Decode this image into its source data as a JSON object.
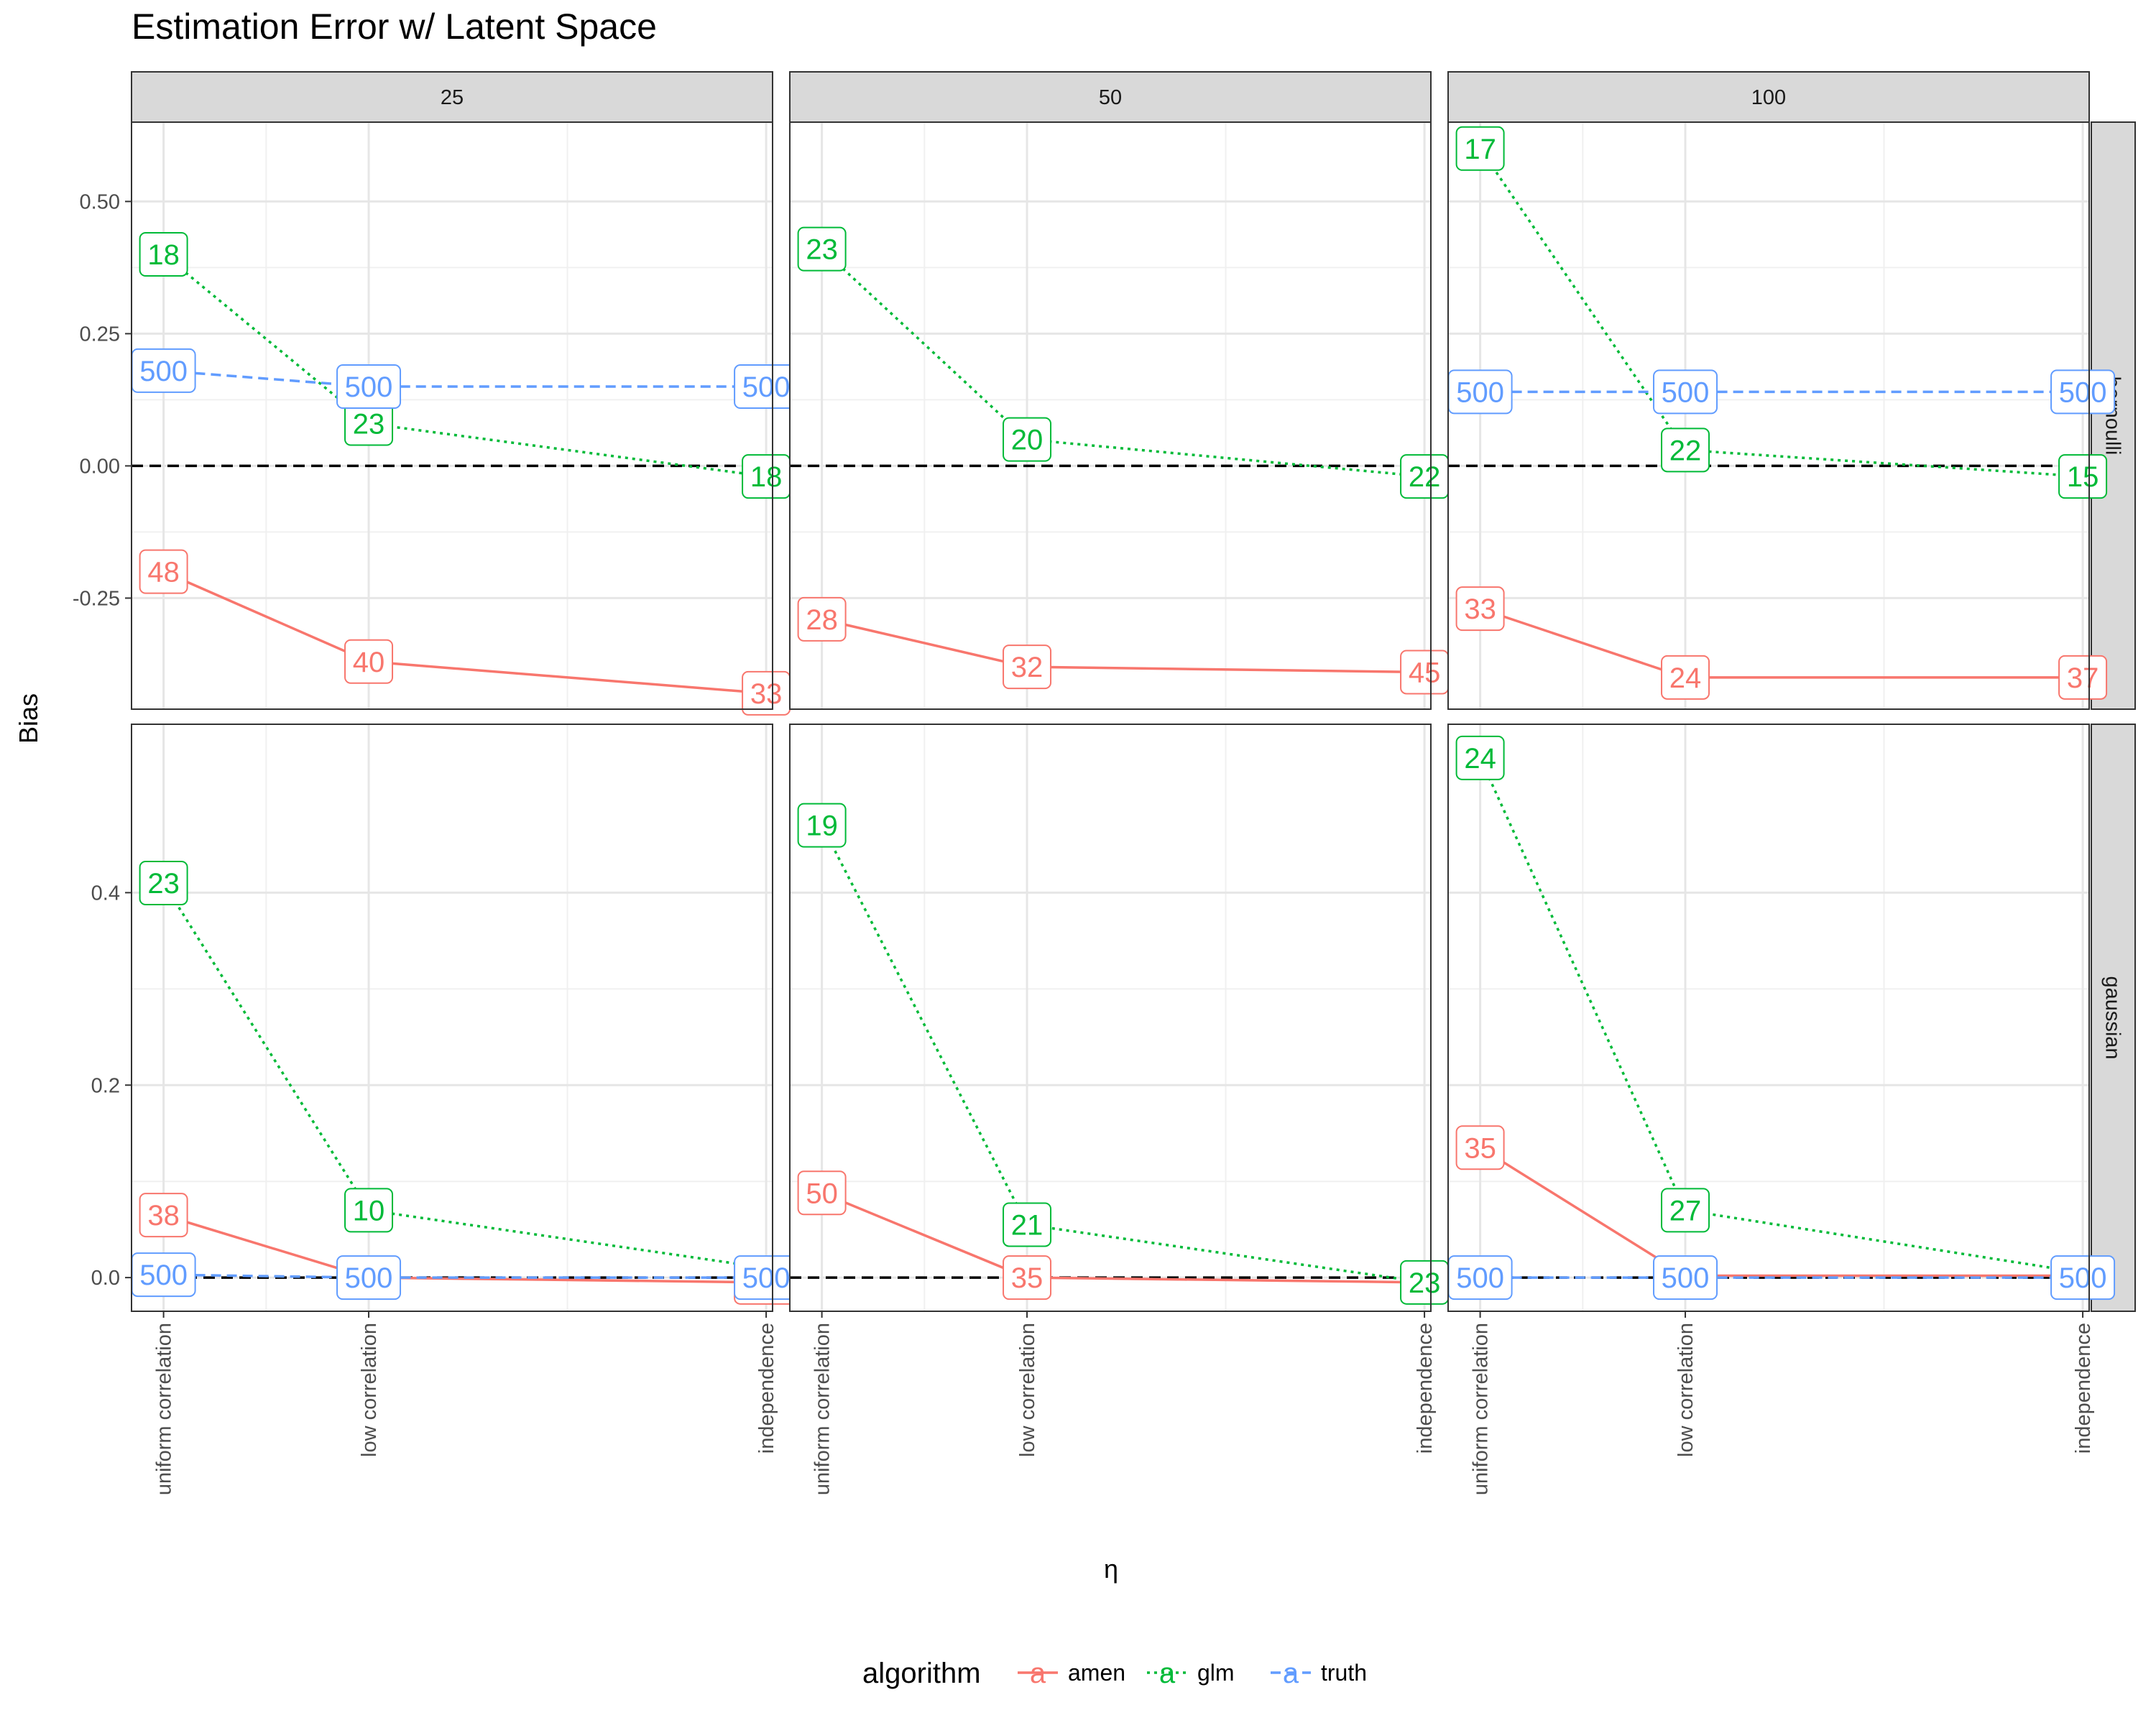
{
  "chart_data": {
    "type": "line",
    "title": "Estimation Error w/ Latent Space",
    "xlabel": "η",
    "ylabel": "Bias",
    "categories": [
      "uniform correlation",
      "low correlation",
      "independence"
    ],
    "columns": [
      "25",
      "50",
      "100"
    ],
    "rows": [
      "bernoulli",
      "gaussian"
    ],
    "legend": {
      "title": "algorithm",
      "position": "bottom",
      "entries": [
        "amen",
        "glm",
        "truth"
      ]
    },
    "colors": {
      "amen": "#F8766D",
      "glm": "#00BA38",
      "truth": "#619CFF",
      "reference": "#000000"
    },
    "line_styles": {
      "amen": "solid",
      "glm": "dotted",
      "truth": "dashed"
    },
    "reference_line": {
      "y": 0,
      "style": "dashed"
    },
    "grid": true,
    "row_axes": [
      {
        "row": "bernoulli",
        "ylim": [
          -0.46,
          0.65
        ],
        "ticks": [
          -0.25,
          0,
          0.25,
          0.5
        ],
        "tick_labels": [
          "-0.25",
          "0.00",
          "0.25",
          "0.50"
        ]
      },
      {
        "row": "gaussian",
        "ylim": [
          -0.035,
          0.575
        ],
        "ticks": [
          0,
          0.2,
          0.4
        ],
        "tick_labels": [
          "0.0",
          "0.2",
          "0.4"
        ]
      }
    ],
    "panels": [
      {
        "row": "bernoulli",
        "column": "25",
        "series": [
          {
            "name": "amen",
            "values": [
              -0.2,
              -0.37,
              -0.43
            ],
            "labels": [
              "48",
              "40",
              "33"
            ]
          },
          {
            "name": "glm",
            "values": [
              0.4,
              0.08,
              -0.02
            ],
            "labels": [
              "18",
              "23",
              "18"
            ]
          },
          {
            "name": "truth",
            "values": [
              0.18,
              0.15,
              0.15
            ],
            "labels": [
              "500",
              "500",
              "500"
            ]
          }
        ]
      },
      {
        "row": "bernoulli",
        "column": "50",
        "series": [
          {
            "name": "amen",
            "values": [
              -0.29,
              -0.38,
              -0.39
            ],
            "labels": [
              "28",
              "32",
              "45"
            ]
          },
          {
            "name": "glm",
            "values": [
              0.41,
              0.05,
              -0.02
            ],
            "labels": [
              "23",
              "20",
              "22"
            ]
          },
          {
            "name": "truth",
            "values": [
              null,
              null,
              null
            ],
            "labels": [
              "",
              "",
              ""
            ]
          }
        ]
      },
      {
        "row": "bernoulli",
        "column": "100",
        "series": [
          {
            "name": "amen",
            "values": [
              -0.27,
              -0.4,
              -0.4
            ],
            "labels": [
              "33",
              "24",
              "37"
            ]
          },
          {
            "name": "glm",
            "values": [
              0.6,
              0.03,
              -0.02
            ],
            "labels": [
              "17",
              "22",
              "15"
            ]
          },
          {
            "name": "truth",
            "values": [
              0.14,
              0.14,
              0.14
            ],
            "labels": [
              "500",
              "500",
              "500"
            ]
          }
        ]
      },
      {
        "row": "gaussian",
        "column": "25",
        "series": [
          {
            "name": "amen",
            "values": [
              0.065,
              0.0,
              -0.005
            ],
            "labels": [
              "38",
              "",
              "500"
            ]
          },
          {
            "name": "glm",
            "values": [
              0.41,
              0.07,
              0.01
            ],
            "labels": [
              "23",
              "10",
              ""
            ]
          },
          {
            "name": "truth",
            "values": [
              0.003,
              0.0,
              0.0
            ],
            "labels": [
              "500",
              "500",
              "500"
            ]
          }
        ]
      },
      {
        "row": "gaussian",
        "column": "50",
        "series": [
          {
            "name": "amen",
            "values": [
              0.088,
              0.0,
              -0.005
            ],
            "labels": [
              "50",
              "35",
              ""
            ]
          },
          {
            "name": "glm",
            "values": [
              0.47,
              0.055,
              -0.005
            ],
            "labels": [
              "19",
              "21",
              "23"
            ]
          },
          {
            "name": "truth",
            "values": [
              null,
              null,
              null
            ],
            "labels": [
              "",
              "",
              ""
            ]
          }
        ]
      },
      {
        "row": "gaussian",
        "column": "100",
        "series": [
          {
            "name": "amen",
            "values": [
              0.135,
              0.002,
              0.002
            ],
            "labels": [
              "35",
              "",
              ""
            ]
          },
          {
            "name": "glm",
            "values": [
              0.54,
              0.07,
              0.005
            ],
            "labels": [
              "24",
              "27",
              ""
            ]
          },
          {
            "name": "truth",
            "values": [
              0.0,
              0.0,
              0.0
            ],
            "labels": [
              "500",
              "500",
              "500"
            ]
          }
        ]
      }
    ]
  }
}
